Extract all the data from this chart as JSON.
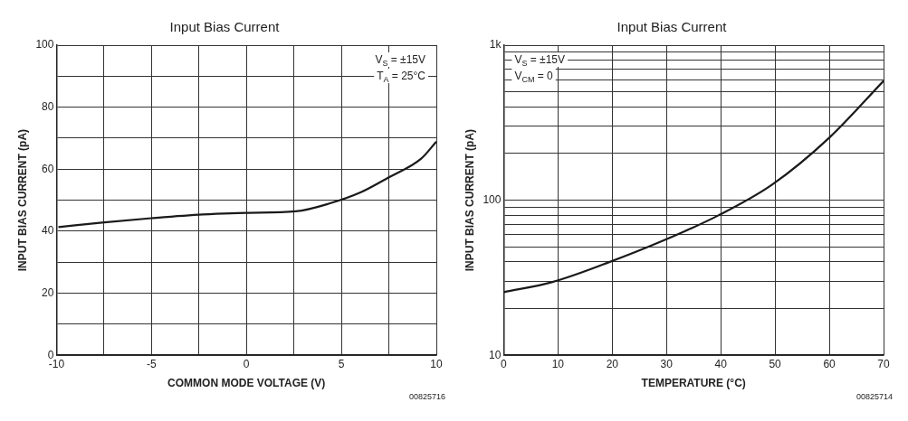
{
  "chart_data": [
    {
      "type": "line",
      "title": "Input Bias Current",
      "xlabel": "COMMON MODE VOLTAGE (V)",
      "ylabel": "INPUT BIAS CURRENT (pA)",
      "x": [
        -9.9,
        -7.6,
        -5,
        -2.3,
        0,
        2.6,
        4.4,
        6,
        7.5,
        9.2,
        10
      ],
      "series": [
        {
          "color": "#1a1a1a",
          "values": [
            41.3,
            42.8,
            44.2,
            45.4,
            45.9,
            46.4,
            49,
            52.5,
            57.4,
            63.4,
            68.9
          ]
        }
      ],
      "xlim": [
        -10,
        10
      ],
      "xticks": [
        -10,
        {
          "value": -7.5,
          "label": null
        },
        -5,
        {
          "value": -2.5,
          "label": null
        },
        0,
        {
          "value": 2.5,
          "label": null
        },
        5,
        {
          "value": 7.5,
          "label": null
        },
        10
      ],
      "ylim": [
        0,
        100
      ],
      "yticks": [
        0,
        {
          "value": 10,
          "label": null
        },
        20,
        {
          "value": 30,
          "label": null
        },
        40,
        {
          "value": 50,
          "label": null
        },
        60,
        {
          "value": 70,
          "label": null
        },
        80,
        {
          "value": 90,
          "label": null
        },
        100
      ],
      "grid": true,
      "legend": false,
      "marker": "none",
      "line_style": "solid",
      "annotations": [
        "V$_{S}$ = ±15V",
        "T$_{A}$ = 25°C",
        "00825716"
      ]
    },
    {
      "type": "line",
      "title": "Input Bias Current",
      "xlabel": "TEMPERATURE (°C)",
      "ylabel": "INPUT BIAS CURRENT (pA)",
      "x": [
        0,
        9,
        18.9,
        29.2,
        39.5,
        49.4,
        60.1,
        70
      ],
      "series": [
        {
          "color": "#1a1a1a",
          "values": [
            25.5,
            29.7,
            39.2,
            54.5,
            79.6,
            125.6,
            255,
            588
          ]
        }
      ],
      "xlim": [
        0,
        70
      ],
      "xticks": [
        0,
        10,
        20,
        30,
        40,
        50,
        60,
        70
      ],
      "ylim": [
        10,
        1000
      ],
      "log": "y",
      "yticks": [
        10,
        {
          "value": 20,
          "label": null
        },
        {
          "value": 30,
          "label": null
        },
        {
          "value": 40,
          "label": null
        },
        {
          "value": 50,
          "label": null
        },
        {
          "value": 60,
          "label": null
        },
        {
          "value": 70,
          "label": null
        },
        {
          "value": 80,
          "label": null
        },
        {
          "value": 90,
          "label": null
        },
        100,
        {
          "value": 200,
          "label": null
        },
        {
          "value": 300,
          "label": null
        },
        {
          "value": 400,
          "label": null
        },
        {
          "value": 500,
          "label": null
        },
        {
          "value": 600,
          "label": null
        },
        {
          "value": 700,
          "label": null
        },
        {
          "value": 800,
          "label": null
        },
        {
          "value": 900,
          "label": null
        },
        {
          "value": 1000,
          "label": "1k"
        }
      ],
      "grid": true,
      "legend": false,
      "marker": "none",
      "line_style": "solid",
      "annotations": [
        "V$_{S}$ = ±15V",
        "V$_{CM}$ = 0",
        "00825714"
      ]
    }
  ]
}
